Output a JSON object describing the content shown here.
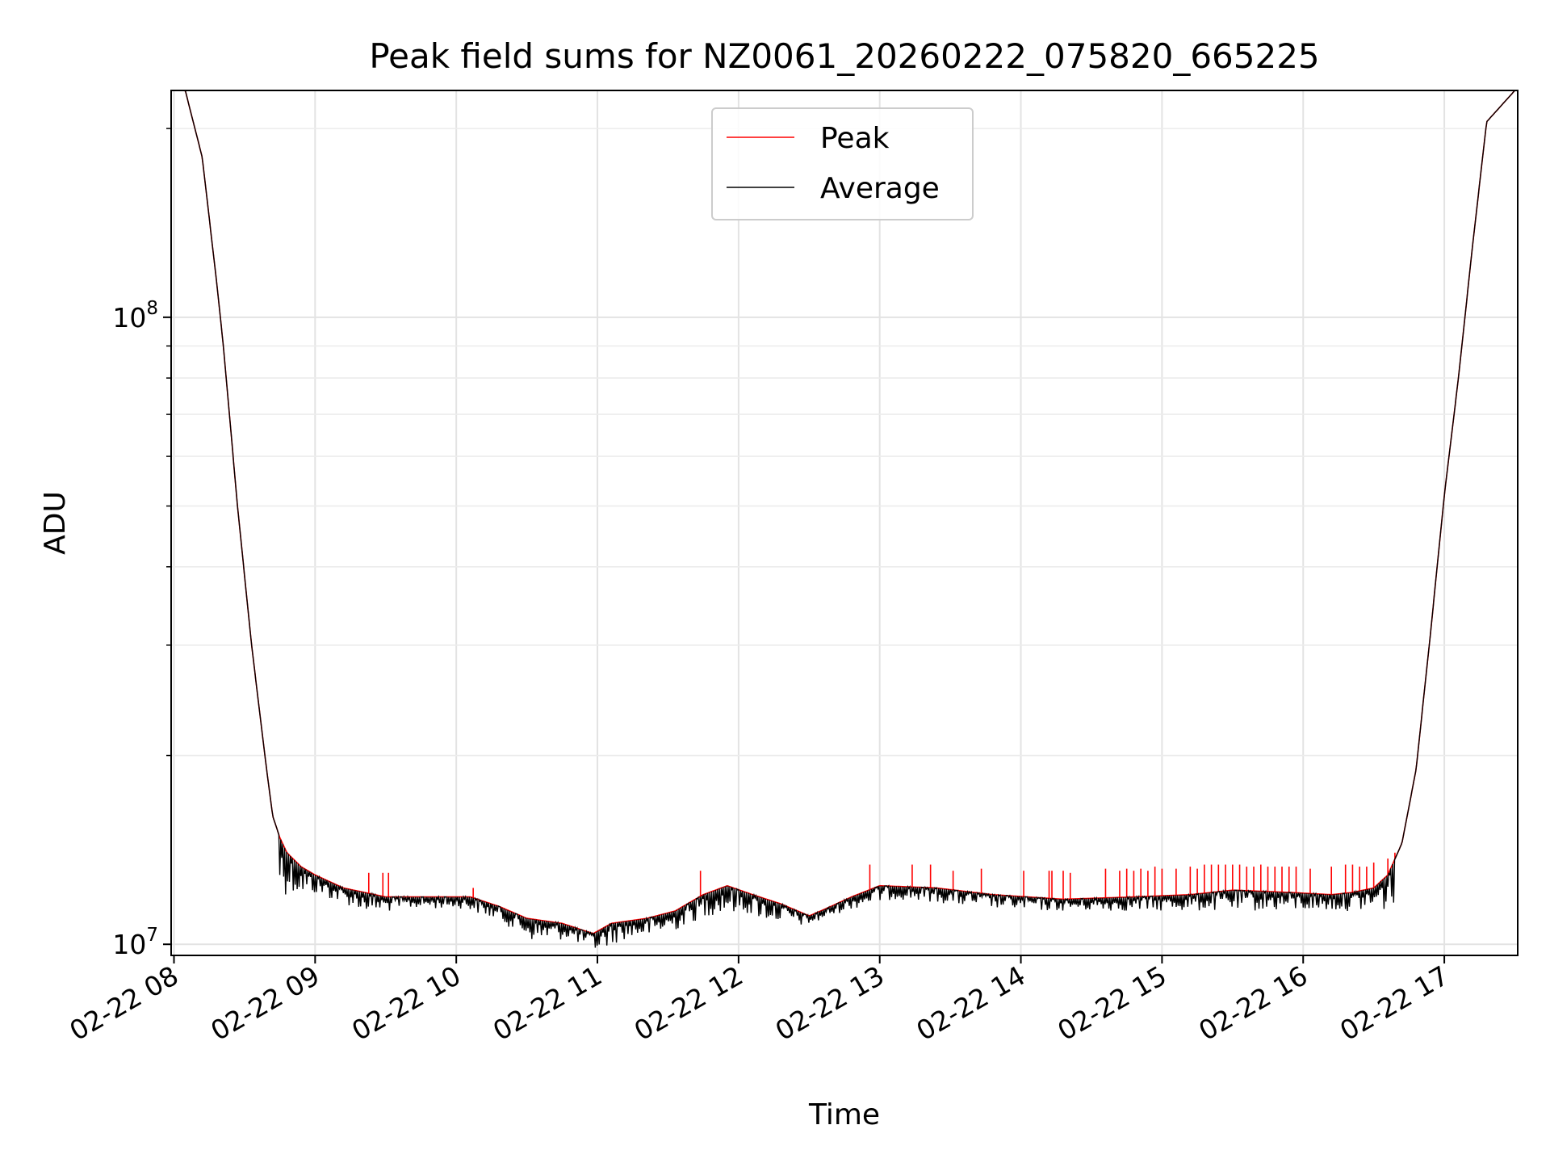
{
  "chart_data": {
    "type": "line",
    "title": "Peak field sums for NZ0061_20260222_075820_665225",
    "xlabel": "Time",
    "ylabel": "ADU",
    "yscale": "log",
    "xlim_hours": [
      7.98,
      17.52
    ],
    "ylim": [
      9600000,
      230000000
    ],
    "x_ticks": [
      {
        "hour": 8,
        "label": "02-22 08"
      },
      {
        "hour": 9,
        "label": "02-22 09"
      },
      {
        "hour": 10,
        "label": "02-22 10"
      },
      {
        "hour": 11,
        "label": "02-22 11"
      },
      {
        "hour": 12,
        "label": "02-22 12"
      },
      {
        "hour": 13,
        "label": "02-22 13"
      },
      {
        "hour": 14,
        "label": "02-22 14"
      },
      {
        "hour": 15,
        "label": "02-22 15"
      },
      {
        "hour": 16,
        "label": "02-22 16"
      },
      {
        "hour": 17,
        "label": "02-22 17"
      }
    ],
    "y_major_ticks": [
      {
        "value": 10000000,
        "base": "10",
        "exp": "7"
      },
      {
        "value": 100000000,
        "base": "10",
        "exp": "8"
      }
    ],
    "y_minor_ticks": [
      20000000,
      30000000,
      40000000,
      50000000,
      60000000,
      70000000,
      80000000,
      90000000,
      200000000
    ],
    "grid": true,
    "legend": {
      "position": "upper center"
    },
    "series": [
      {
        "name": "Peak",
        "color": "#ff0000",
        "spike_hours": [
          9.38,
          9.48,
          9.52,
          10.12,
          11.73,
          12.93,
          13.23,
          13.36,
          13.52,
          13.72,
          14.02,
          14.2,
          14.22,
          14.3,
          14.35,
          14.6,
          14.7,
          14.75,
          14.8,
          14.85,
          14.9,
          14.95,
          15.0,
          15.1,
          15.2,
          15.25,
          15.3,
          15.35,
          15.4,
          15.45,
          15.5,
          15.55,
          15.6,
          15.65,
          15.7,
          15.75,
          15.8,
          15.85,
          15.9,
          15.95,
          16.05,
          16.2,
          16.3,
          16.35,
          16.4,
          16.45,
          16.5,
          16.6,
          16.65
        ],
        "spike_values": [
          13000000,
          13000000,
          13000000,
          12300000,
          13100000,
          13400000,
          13400000,
          13400000,
          13100000,
          13200000,
          13100000,
          13100000,
          13100000,
          13100000,
          13000000,
          13200000,
          13100000,
          13200000,
          13100000,
          13200000,
          13100000,
          13300000,
          13200000,
          13200000,
          13300000,
          13200000,
          13400000,
          13400000,
          13400000,
          13400000,
          13400000,
          13400000,
          13300000,
          13300000,
          13400000,
          13300000,
          13300000,
          13300000,
          13300000,
          13300000,
          13200000,
          13300000,
          13400000,
          13400000,
          13300000,
          13300000,
          13500000,
          13700000,
          14000000
        ]
      },
      {
        "name": "Average",
        "color": "#000000",
        "x_hours": [
          8.0,
          8.08,
          8.2,
          8.3,
          8.35,
          8.45,
          8.55,
          8.65,
          8.7,
          8.75,
          8.8,
          8.9,
          9.0,
          9.2,
          9.5,
          9.8,
          10.1,
          10.3,
          10.5,
          10.75,
          10.97,
          11.1,
          11.35,
          11.55,
          11.75,
          11.92,
          12.1,
          12.3,
          12.5,
          12.62,
          12.8,
          13.0,
          13.4,
          13.8,
          14.3,
          14.8,
          15.2,
          15.5,
          15.9,
          16.2,
          16.35,
          16.5,
          16.6,
          16.7,
          16.8,
          16.9,
          17.0,
          17.1,
          17.2,
          17.3,
          17.5
        ],
        "values": [
          230000000,
          230000000,
          180000000,
          115000000,
          90000000,
          50000000,
          30000000,
          19500000,
          16000000,
          14800000,
          14000000,
          13300000,
          12900000,
          12300000,
          11900000,
          11900000,
          11900000,
          11500000,
          11000000,
          10800000,
          10400000,
          10800000,
          11000000,
          11300000,
          12000000,
          12400000,
          12000000,
          11600000,
          11100000,
          11400000,
          11900000,
          12400000,
          12300000,
          12000000,
          11800000,
          11900000,
          12000000,
          12200000,
          12100000,
          12000000,
          12100000,
          12300000,
          12900000,
          14500000,
          19000000,
          31000000,
          52000000,
          80000000,
          130000000,
          205000000,
          230000000
        ],
        "dip_hours": [
          9.0,
          9.2,
          9.4,
          9.55,
          9.7,
          10.05,
          10.3,
          10.56,
          10.8,
          10.98,
          11.2,
          11.4,
          11.55,
          11.7,
          11.85,
          12.05,
          12.2,
          12.45,
          12.55,
          12.75,
          13.1,
          13.35,
          13.6,
          13.85,
          14.1
        ],
        "dip_values": [
          12000000,
          11600000,
          11200000,
          11300000,
          11400000,
          11400000,
          10900000,
          10050000,
          10200000,
          9700000,
          10200000,
          10300000,
          10500000,
          10900000,
          11200000,
          11200000,
          10900000,
          10700000,
          10800000,
          11300000,
          11800000,
          11700000,
          11500000,
          11400000,
          11300000
        ]
      }
    ]
  }
}
